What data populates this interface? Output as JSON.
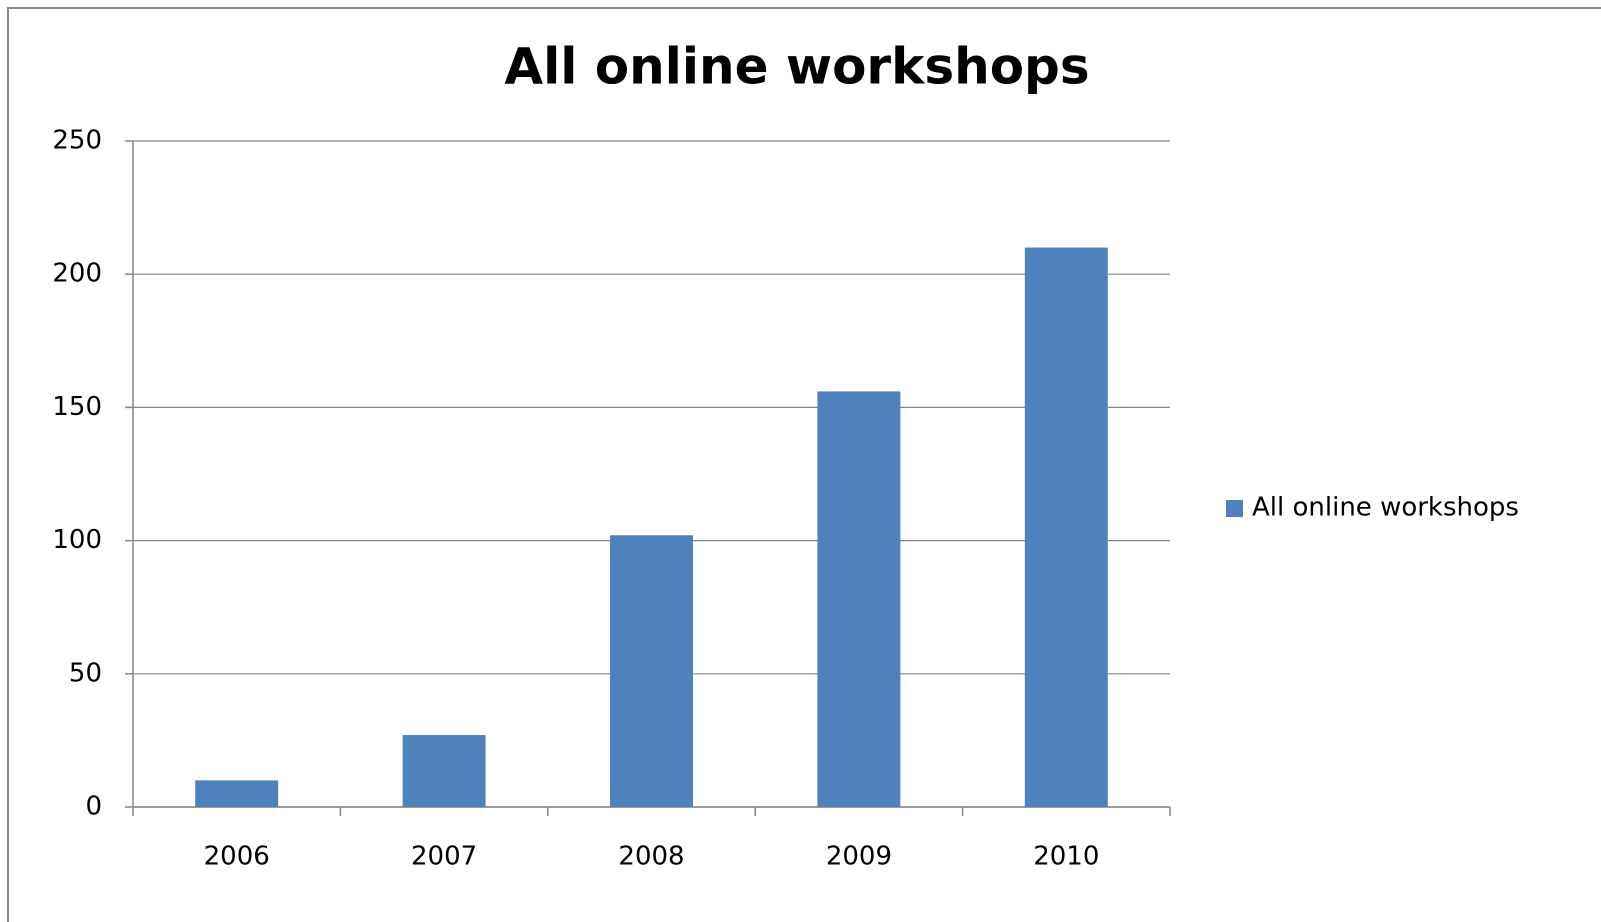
{
  "chart_data": {
    "type": "bar",
    "title": "All online workshops",
    "categories": [
      "2006",
      "2007",
      "2008",
      "2009",
      "2010"
    ],
    "series": [
      {
        "name": "All online workshops",
        "color": "#4f81bd",
        "values": [
          10,
          27,
          102,
          156,
          210
        ]
      }
    ],
    "ylim": [
      0,
      250
    ],
    "yticks": [
      0,
      50,
      100,
      150,
      200,
      250
    ],
    "grid": true,
    "legend": "right"
  }
}
